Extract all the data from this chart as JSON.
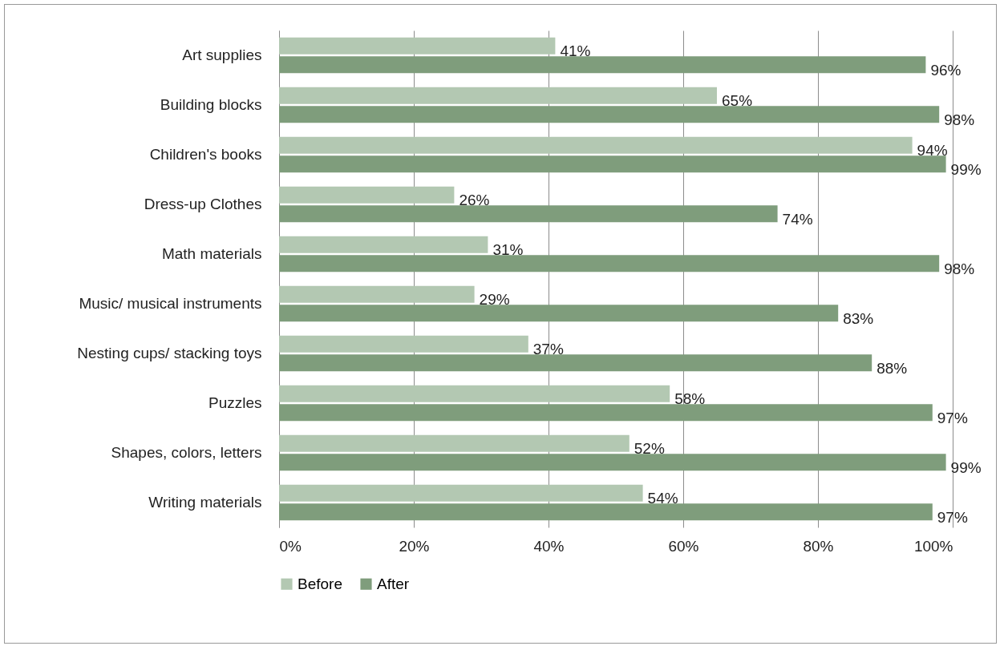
{
  "chart_data": {
    "type": "bar",
    "orientation": "horizontal",
    "categories": [
      "Art supplies",
      "Building blocks",
      "Children's books",
      "Dress-up Clothes",
      "Math materials",
      "Music/ musical instruments",
      "Nesting cups/ stacking toys",
      "Puzzles",
      "Shapes, colors, letters",
      "Writing materials"
    ],
    "series": [
      {
        "name": "Before",
        "color": "#b3c8b2",
        "values": [
          41,
          65,
          94,
          26,
          31,
          29,
          37,
          58,
          52,
          54
        ],
        "value_labels": [
          "41%",
          "65%",
          "94%",
          "26%",
          "31%",
          "29%",
          "37%",
          "58%",
          "52%",
          "54%"
        ]
      },
      {
        "name": "After",
        "color": "#7f9d7c",
        "values": [
          96,
          98,
          99,
          74,
          98,
          83,
          88,
          97,
          99,
          97
        ],
        "value_labels": [
          "96%",
          "98%",
          "99%",
          "74%",
          "98%",
          "83%",
          "88%",
          "97%",
          "99%",
          "97%"
        ]
      }
    ],
    "xlim": [
      0,
      100
    ],
    "xticks": [
      {
        "value": 0,
        "label": "0%"
      },
      {
        "value": 20,
        "label": "20%"
      },
      {
        "value": 40,
        "label": "40%"
      },
      {
        "value": 60,
        "label": "60%"
      },
      {
        "value": 80,
        "label": "80%"
      },
      {
        "value": 100,
        "label": "100%"
      }
    ],
    "grid": "x",
    "legend": "bottom"
  }
}
